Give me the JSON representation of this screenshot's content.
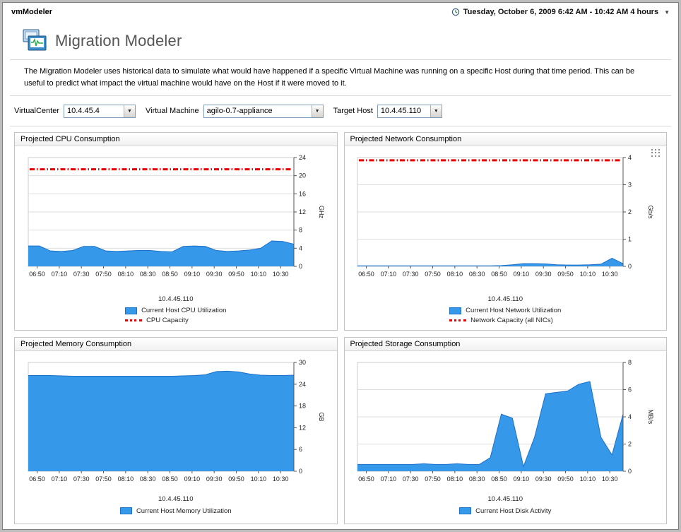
{
  "window": {
    "app_title": "vmModeler",
    "time_range": "Tuesday, October 6, 2009 6:42 AM - 10:42 AM 4 hours"
  },
  "header": {
    "title": "Migration Modeler",
    "description": "The Migration Modeler uses historical data to simulate what would have happened if a specific Virtual Machine was running on a specific Host during that time period. This can be useful to predict what impact the virtual machine would have on the Host if it were moved to it."
  },
  "controls": {
    "virtualcenter": {
      "label": "VirtualCenter",
      "value": "10.4.45.4"
    },
    "virtual_machine": {
      "label": "Virtual Machine",
      "value": "agilo-0.7-appliance"
    },
    "target_host": {
      "label": "Target Host",
      "value": "10.4.45.110"
    }
  },
  "chart_data": [
    {
      "type": "area",
      "title": "Projected CPU Consumption",
      "host": "10.4.45.110",
      "ylabel": "GHz",
      "ylim": [
        0,
        24
      ],
      "y_ticks": [
        0,
        4,
        8,
        12,
        16,
        20,
        24
      ],
      "x_ticks": [
        "06:50",
        "07:10",
        "07:30",
        "07:50",
        "08:10",
        "08:30",
        "08:50",
        "09:10",
        "09:30",
        "09:50",
        "10:10",
        "10:30"
      ],
      "x_start_min": 8,
      "x_step_min": 20,
      "x_total_min": 240,
      "values": [
        4.5,
        4.5,
        3.4,
        3.3,
        3.5,
        4.4,
        4.4,
        3.4,
        3.3,
        3.4,
        3.5,
        3.5,
        3.3,
        3.2,
        4.4,
        4.5,
        4.4,
        3.5,
        3.3,
        3.4,
        3.6,
        4.0,
        5.6,
        5.5,
        4.9
      ],
      "capacity": 21.4,
      "legend": [
        {
          "type": "area",
          "label": "Current Host CPU Utilization"
        },
        {
          "type": "line",
          "label": "CPU Capacity"
        }
      ],
      "colors": {
        "area": "#3598e8",
        "area_stroke": "#1b70c8",
        "capacity": "#e80000"
      }
    },
    {
      "type": "area",
      "title": "Projected Network Consumption",
      "host": "10.4.45.110",
      "ylabel": "Gb/s",
      "ylim": [
        0,
        4
      ],
      "y_ticks": [
        0,
        1,
        2,
        3,
        4
      ],
      "x_ticks": [
        "06:50",
        "07:10",
        "07:30",
        "07:50",
        "08:10",
        "08:30",
        "08:50",
        "09:10",
        "09:30",
        "09:50",
        "10:10",
        "10:30"
      ],
      "x_start_min": 8,
      "x_step_min": 20,
      "x_total_min": 240,
      "values": [
        0.02,
        0.02,
        0.02,
        0.02,
        0.02,
        0.02,
        0.02,
        0.02,
        0.02,
        0.02,
        0.02,
        0.02,
        0.02,
        0.03,
        0.06,
        0.1,
        0.1,
        0.09,
        0.06,
        0.05,
        0.05,
        0.06,
        0.08,
        0.3,
        0.1
      ],
      "capacity": 3.9,
      "legend": [
        {
          "type": "area",
          "label": "Current Host Network Utilization"
        },
        {
          "type": "line",
          "label": "Network Capacity (all NICs)"
        }
      ],
      "colors": {
        "area": "#3598e8",
        "area_stroke": "#1b70c8",
        "capacity": "#e80000"
      }
    },
    {
      "type": "area",
      "title": "Projected Memory Consumption",
      "host": "10.4.45.110",
      "ylabel": "GB",
      "ylim": [
        0,
        30
      ],
      "y_ticks": [
        0,
        6,
        12,
        18,
        24,
        30
      ],
      "x_ticks": [
        "06:50",
        "07:10",
        "07:30",
        "07:50",
        "08:10",
        "08:30",
        "08:50",
        "09:10",
        "09:30",
        "09:50",
        "10:10",
        "10:30"
      ],
      "x_start_min": 8,
      "x_step_min": 20,
      "x_total_min": 240,
      "values": [
        26.4,
        26.4,
        26.4,
        26.3,
        26.2,
        26.2,
        26.2,
        26.2,
        26.2,
        26.2,
        26.2,
        26.2,
        26.2,
        26.2,
        26.3,
        26.4,
        26.6,
        27.5,
        27.6,
        27.4,
        26.8,
        26.5,
        26.4,
        26.4,
        26.5
      ],
      "capacity": null,
      "legend": [
        {
          "type": "area",
          "label": "Current Host Memory Utilization"
        }
      ],
      "colors": {
        "area": "#3598e8",
        "area_stroke": "#1b70c8",
        "capacity": "#e80000"
      }
    },
    {
      "type": "area",
      "title": "Projected Storage Consumption",
      "host": "10.4.45.110",
      "ylabel": "MB/s",
      "ylim": [
        0,
        8
      ],
      "y_ticks": [
        0,
        2,
        4,
        6,
        8
      ],
      "x_ticks": [
        "06:50",
        "07:10",
        "07:30",
        "07:50",
        "08:10",
        "08:30",
        "08:50",
        "09:10",
        "09:30",
        "09:50",
        "10:10",
        "10:30"
      ],
      "x_start_min": 8,
      "x_step_min": 20,
      "x_total_min": 240,
      "values": [
        0.5,
        0.5,
        0.5,
        0.5,
        0.5,
        0.5,
        0.55,
        0.5,
        0.5,
        0.55,
        0.5,
        0.5,
        1.0,
        4.2,
        3.9,
        0.35,
        2.5,
        5.7,
        5.8,
        5.9,
        6.4,
        6.6,
        2.5,
        1.2,
        4.2
      ],
      "capacity": null,
      "legend": [
        {
          "type": "area",
          "label": "Current Host Disk Activity"
        }
      ],
      "colors": {
        "area": "#3598e8",
        "area_stroke": "#1b70c8",
        "capacity": "#e80000"
      }
    }
  ]
}
